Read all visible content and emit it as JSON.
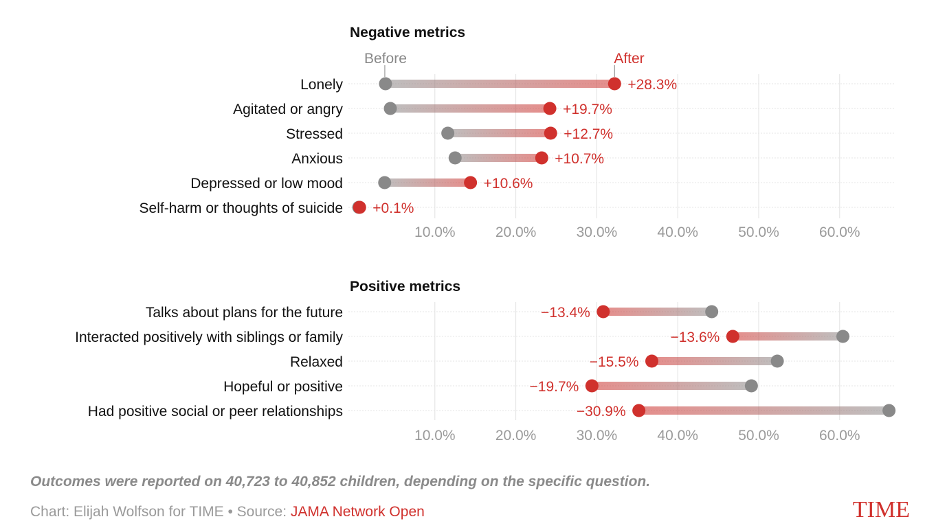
{
  "colors": {
    "before": "#898989",
    "after": "#d0312d",
    "grid": "#e2e2e2",
    "label": "#111111",
    "tick": "#9a9a9a"
  },
  "chart_data": [
    {
      "type": "dumbbell",
      "title": "Negative metrics",
      "before_label": "Before",
      "after_label": "After",
      "xlim": [
        0,
        66.5
      ],
      "x_ticks": [
        10,
        20,
        30,
        40,
        50,
        60
      ],
      "x_tick_labels": [
        "10.0%",
        "20.0%",
        "30.0%",
        "40.0%",
        "50.0%",
        "60.0%"
      ],
      "grid": true,
      "categories": [
        "Lonely",
        "Agitated or angry",
        "Stressed",
        "Anxious",
        "Depressed or low mood",
        "Self-harm or thoughts of suicide"
      ],
      "series": [
        {
          "name": "Before",
          "values": [
            3.9,
            4.5,
            11.6,
            12.5,
            3.8,
            0.6
          ]
        },
        {
          "name": "After",
          "values": [
            32.2,
            24.2,
            24.3,
            23.2,
            14.4,
            0.7
          ]
        }
      ],
      "change_labels": [
        "+28.3%",
        "+19.7%",
        "+12.7%",
        "+10.7%",
        "+10.6%",
        "+0.1%"
      ]
    },
    {
      "type": "dumbbell",
      "title": "Positive metrics",
      "xlim": [
        0,
        66.5
      ],
      "x_ticks": [
        10,
        20,
        30,
        40,
        50,
        60
      ],
      "x_tick_labels": [
        "10.0%",
        "20.0%",
        "30.0%",
        "40.0%",
        "50.0%",
        "60.0%"
      ],
      "grid": true,
      "categories": [
        "Talks about plans for the future",
        "Interacted positively with siblings or family",
        "Relaxed",
        "Hopeful or positive",
        "Had positive social or peer relationships"
      ],
      "series": [
        {
          "name": "Before",
          "values": [
            44.2,
            60.4,
            52.3,
            49.1,
            66.1
          ]
        },
        {
          "name": "After",
          "values": [
            30.8,
            46.8,
            36.8,
            29.4,
            35.2
          ]
        }
      ],
      "change_labels": [
        "−13.4%",
        "−13.6%",
        "−15.5%",
        "−19.7%",
        "−30.9%"
      ]
    }
  ],
  "footer": {
    "note": "Outcomes were reported on 40,723 to 40,852 children, depending on the specific question.",
    "credit_prefix": "Chart: Elijah Wolfson for TIME • Source: ",
    "source_name": "JAMA Network Open",
    "logo_text": "TIME"
  }
}
